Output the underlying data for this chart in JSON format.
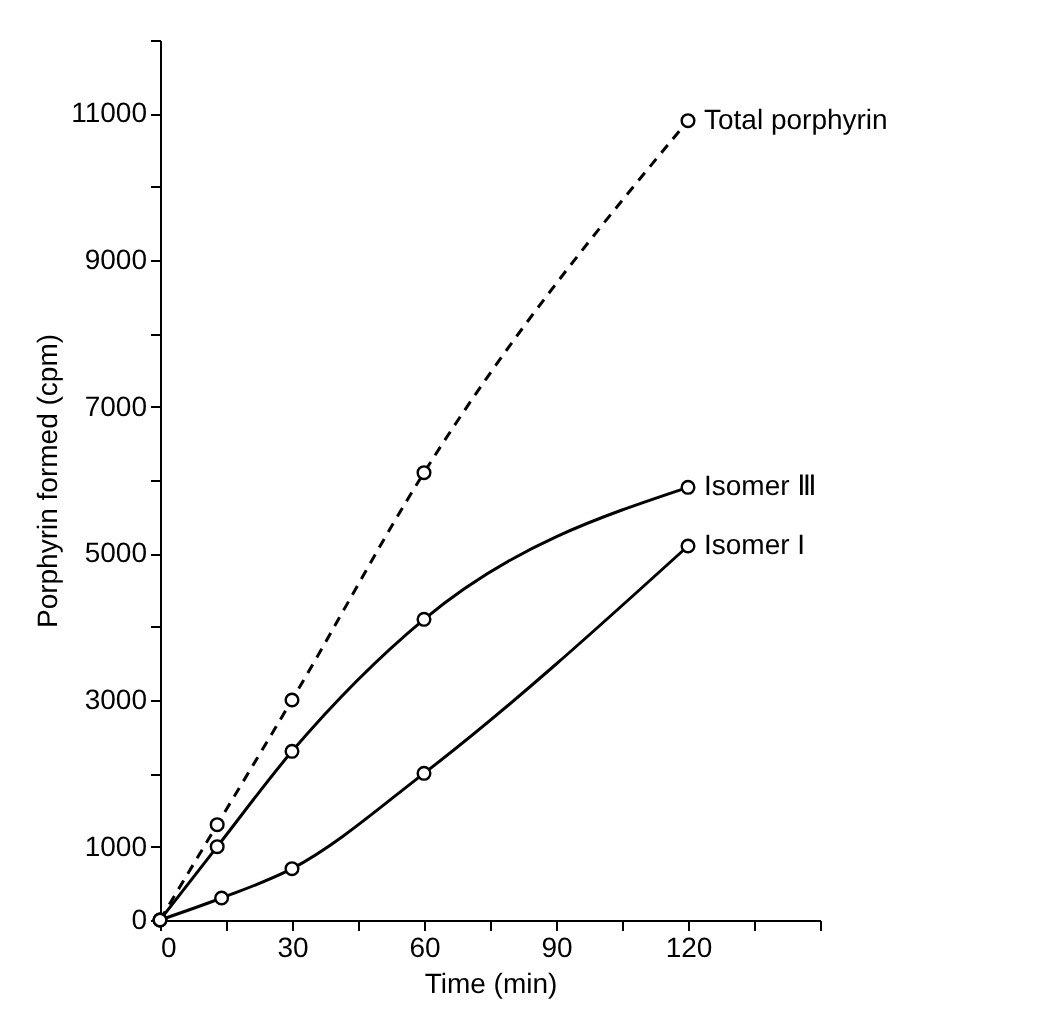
{
  "chart_data": {
    "type": "line",
    "xlabel": "Time (min)",
    "ylabel": "Porphyrin formed (cpm)",
    "xlim": [
      0,
      150
    ],
    "xticks": [
      0,
      {
        "value": 15,
        "label": null
      },
      30,
      {
        "value": 45,
        "label": null
      },
      60,
      {
        "value": 75,
        "label": null
      },
      90,
      {
        "value": 105,
        "label": null
      },
      120,
      {
        "value": 135,
        "label": null
      },
      {
        "value": 150,
        "label": null
      }
    ],
    "ylim": [
      0,
      12000
    ],
    "yticks": [
      0,
      1000,
      {
        "value": 2000,
        "label": null
      },
      3000,
      {
        "value": 4000,
        "label": null
      },
      5000,
      {
        "value": 6000,
        "label": null
      },
      7000,
      {
        "value": 8000,
        "label": null
      },
      9000,
      {
        "value": 10000,
        "label": null
      },
      11000,
      {
        "value": 12000,
        "label": null
      }
    ],
    "marker": "circle",
    "grid": false,
    "series": [
      {
        "name": "Total porphyrin",
        "color": "#000000",
        "line_style": "dashed",
        "x": [
          0,
          13,
          30,
          60,
          120
        ],
        "values": [
          0,
          1300,
          3000,
          6100,
          10900
        ]
      },
      {
        "name": "Isomer Ⅲ",
        "color": "#000000",
        "line_style": "solid",
        "x": [
          0,
          13,
          30,
          60,
          120
        ],
        "values": [
          0,
          1000,
          2300,
          4100,
          5900
        ]
      },
      {
        "name": "Isomer I",
        "color": "#000000",
        "line_style": "solid",
        "x": [
          0,
          14,
          30,
          60,
          120
        ],
        "values": [
          0,
          300,
          700,
          2000,
          5100
        ]
      }
    ]
  }
}
